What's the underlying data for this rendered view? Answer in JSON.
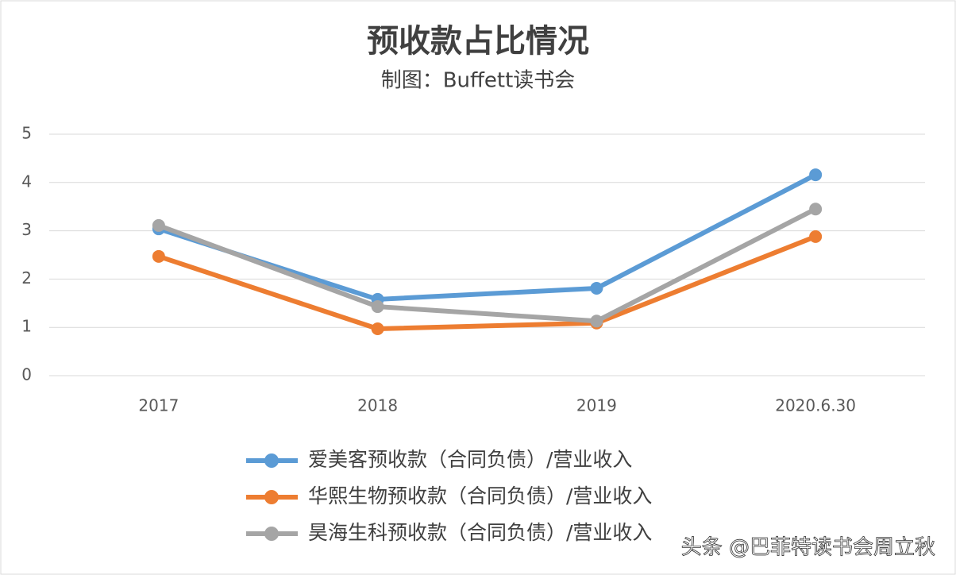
{
  "chart_data": {
    "type": "line",
    "title": "预收款占比情况",
    "subtitle": "制图：Buffett读书会",
    "categories": [
      "2017",
      "2018",
      "2019",
      "2020.6.30"
    ],
    "series": [
      {
        "name": "爱美客预收款（合同负债）/营业收入",
        "color": "#5b9bd5",
        "values": [
          3.04,
          1.58,
          1.81,
          4.16
        ]
      },
      {
        "name": "华熙生物预收款（合同负债）/营业收入",
        "color": "#ed7d31",
        "values": [
          2.47,
          0.97,
          1.09,
          2.88
        ]
      },
      {
        "name": "昊海生科预收款（合同负债）/营业收入",
        "color": "#a5a5a5",
        "values": [
          3.11,
          1.43,
          1.13,
          3.45
        ]
      }
    ],
    "ylim": [
      0,
      5
    ],
    "yticks": [
      0,
      1,
      2,
      3,
      4,
      5
    ],
    "grid": true,
    "legend": "bottom",
    "watermark": "头条 @巴菲特读书会周立秋"
  }
}
